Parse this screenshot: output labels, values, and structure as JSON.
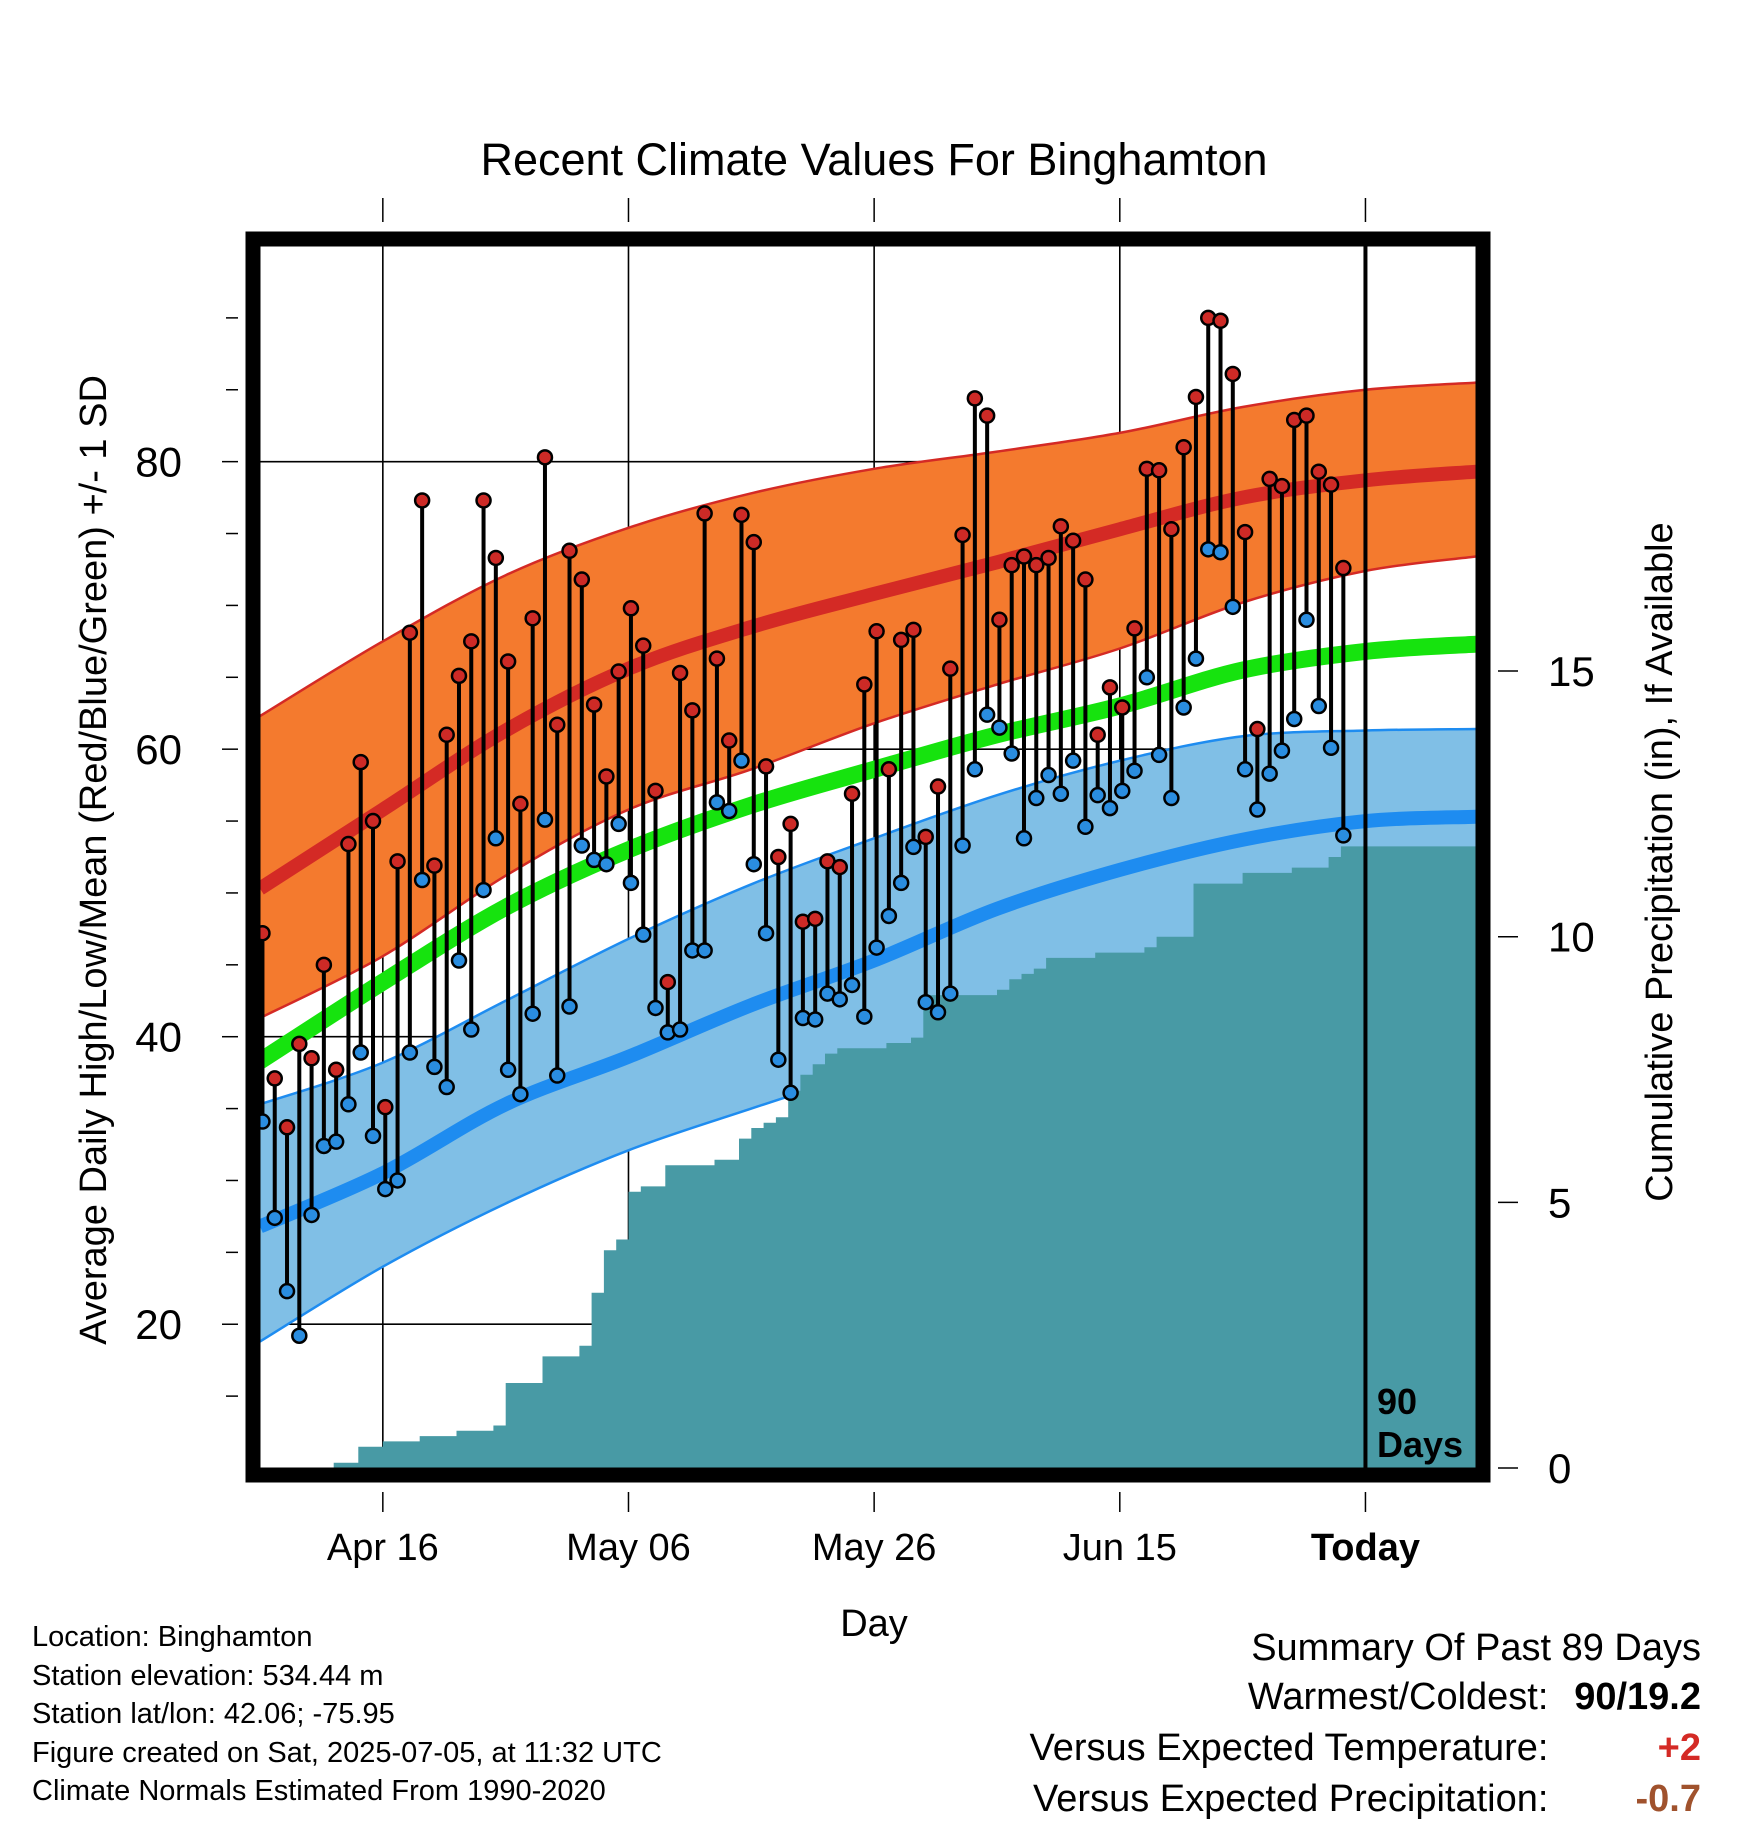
{
  "chart_data": {
    "type": "line",
    "title": "Recent Climate Values For Binghamton",
    "xlabel": "Day",
    "ylabel": "Average Daily High/Low/Mean (Red/Blue/Green) +/- 1 SD",
    "y2label": "Cumulative Precipitation (in), If Available",
    "ylim": [
      10,
      95
    ],
    "y2lim": [
      0,
      23
    ],
    "y_ticks": [
      "20",
      "40",
      "60",
      "80"
    ],
    "y2_ticks": [
      "0",
      "5",
      "10",
      "15"
    ],
    "x_ticks": [
      "Apr 16",
      "May 06",
      "May 26",
      "Jun 15",
      "Today"
    ],
    "x_tick_days": [
      10,
      30,
      50,
      70,
      90
    ],
    "x_range": [
      0,
      99
    ],
    "today_marker": {
      "day": 90,
      "label_line1": "90",
      "label_line2": "Days"
    },
    "grid": true,
    "normal_days": [
      0,
      10,
      20,
      30,
      40,
      50,
      60,
      70,
      80,
      90,
      99
    ],
    "normals": {
      "high_mean": [
        50.3,
        55.8,
        61.3,
        65.6,
        68.5,
        70.8,
        73.0,
        75.3,
        77.5,
        78.7,
        79.3
      ],
      "high_sd_upper": [
        62.3,
        67.5,
        72.1,
        75.4,
        77.8,
        79.5,
        80.7,
        82.0,
        83.8,
        85.0,
        85.5
      ],
      "high_sd_lower": [
        41.3,
        45.6,
        51.2,
        55.8,
        58.6,
        61.8,
        64.5,
        67.0,
        70.2,
        72.4,
        73.4
      ],
      "mean": [
        38.3,
        43.8,
        49.0,
        53.0,
        56.1,
        58.6,
        61.0,
        63.0,
        65.5,
        66.8,
        67.3
      ],
      "low_mean": [
        26.8,
        30.5,
        35.3,
        38.6,
        42.2,
        45.3,
        48.9,
        51.6,
        53.7,
        55.0,
        55.3
      ],
      "low_sd_upper": [
        35.3,
        38.2,
        42.5,
        46.8,
        50.6,
        53.8,
        56.8,
        59.2,
        60.9,
        61.3,
        61.4
      ],
      "low_sd_lower": [
        18.8,
        24.0,
        28.4,
        32.1,
        35.0,
        37.8,
        40.8,
        44.3,
        47.5,
        49.2,
        49.7
      ]
    },
    "series": [
      {
        "name": "Daily High",
        "values": [
          47.2,
          37.1,
          33.7,
          39.5,
          38.5,
          45.0,
          37.7,
          53.4,
          59.1,
          55.0,
          35.1,
          52.2,
          68.1,
          77.3,
          51.9,
          61.0,
          65.1,
          67.5,
          77.3,
          73.3,
          66.1,
          56.2,
          69.1,
          80.3,
          61.7,
          73.8,
          71.8,
          63.1,
          58.1,
          65.4,
          69.8,
          67.2,
          57.1,
          43.8,
          65.3,
          62.7,
          76.4,
          66.3,
          60.6,
          76.3,
          74.4,
          58.8,
          52.5,
          54.8,
          48.0,
          48.2,
          52.2,
          51.8,
          56.9,
          64.5,
          68.2,
          58.6,
          67.6,
          68.3,
          53.9,
          57.4,
          65.6,
          74.9,
          84.4,
          83.2,
          69.0,
          72.8,
          73.4,
          72.8,
          73.3,
          75.5,
          74.5,
          71.8,
          61.0,
          64.3,
          62.9,
          68.4,
          79.5,
          79.4,
          75.3,
          81.0,
          84.5,
          90.0,
          89.8,
          86.1,
          75.1,
          61.4,
          78.8,
          78.3,
          82.9,
          83.2,
          79.3,
          78.4,
          72.6
        ]
      },
      {
        "name": "Daily Low",
        "values": [
          34.1,
          27.4,
          22.3,
          19.2,
          27.6,
          32.4,
          32.7,
          35.3,
          38.9,
          33.1,
          29.4,
          30.0,
          38.9,
          50.9,
          37.9,
          36.5,
          45.3,
          40.5,
          50.2,
          53.8,
          37.7,
          36.0,
          41.6,
          55.1,
          37.3,
          42.1,
          53.3,
          52.3,
          52.0,
          54.8,
          50.7,
          47.1,
          42.0,
          40.3,
          40.5,
          46.0,
          46.0,
          56.3,
          55.7,
          59.2,
          52.0,
          47.2,
          38.4,
          36.1,
          41.3,
          41.2,
          43.0,
          42.6,
          43.6,
          41.4,
          46.2,
          48.4,
          50.7,
          53.2,
          42.4,
          41.7,
          43.0,
          53.3,
          58.6,
          62.4,
          61.5,
          59.7,
          53.8,
          56.6,
          58.2,
          56.9,
          59.2,
          54.6,
          56.8,
          55.9,
          57.1,
          58.5,
          65.0,
          59.6,
          56.6,
          62.9,
          66.3,
          73.9,
          73.7,
          69.9,
          58.6,
          55.8,
          58.3,
          59.9,
          62.1,
          69.0,
          63.0,
          60.1,
          54.0
        ]
      },
      {
        "name": "Cumulative Precipitation",
        "values": [
          0,
          0,
          0,
          0,
          0,
          0,
          0.1,
          0.1,
          0.4,
          0.4,
          0.5,
          0.5,
          0.5,
          0.6,
          0.6,
          0.6,
          0.7,
          0.7,
          0.7,
          0.8,
          1.6,
          1.6,
          1.6,
          2.1,
          2.1,
          2.1,
          2.3,
          3.3,
          4.1,
          4.3,
          5.2,
          5.3,
          5.3,
          5.7,
          5.7,
          5.7,
          5.7,
          5.8,
          5.8,
          6.2,
          6.4,
          6.5,
          6.6,
          7.1,
          7.4,
          7.6,
          7.8,
          7.9,
          7.9,
          7.9,
          7.9,
          8.0,
          8.0,
          8.1,
          8.9,
          8.9,
          8.9,
          8.9,
          8.9,
          8.9,
          9.0,
          9.2,
          9.3,
          9.4,
          9.6,
          9.6,
          9.6,
          9.6,
          9.7,
          9.7,
          9.7,
          9.7,
          9.8,
          10.0,
          10.0,
          10.0,
          11.0,
          11.0,
          11.0,
          11.0,
          11.2,
          11.2,
          11.2,
          11.2,
          11.3,
          11.3,
          11.3,
          11.5,
          11.7,
          11.7,
          11.7,
          11.7,
          11.7,
          11.7,
          11.7,
          11.7,
          11.7,
          11.7,
          11.7,
          11.7
        ]
      }
    ],
    "colors": {
      "high_band": "#f47a2e",
      "high_line": "#d42a25",
      "high_edge": "#d42a25",
      "low_band": "#80bfe6",
      "low_line": "#1e8cf0",
      "low_edge": "#1e8cf0",
      "mean_line": "#16e30e",
      "precip": "#489aa5",
      "high_marker": "#cd2a26",
      "low_marker": "#2a8de0"
    }
  },
  "footer": {
    "location": "Location: Binghamton",
    "elevation": "Station elevation: 534.44 m",
    "latlon": "Station lat/lon: 42.06; -75.95",
    "created": "Figure created on Sat, 2025-07-05, at 11:32 UTC",
    "normals": "Climate Normals Estimated From 1990-2020"
  },
  "summary": {
    "title": "Summary Of Past 89 Days",
    "warmest_label": "Warmest/Coldest:",
    "warmest_value": "90/19.2",
    "temp_label": "Versus Expected Temperature:",
    "temp_value": "+2",
    "temp_color": "#d42a25",
    "precip_label": "Versus Expected Precipitation:",
    "precip_value": "-0.7",
    "precip_color": "#a0522d"
  }
}
